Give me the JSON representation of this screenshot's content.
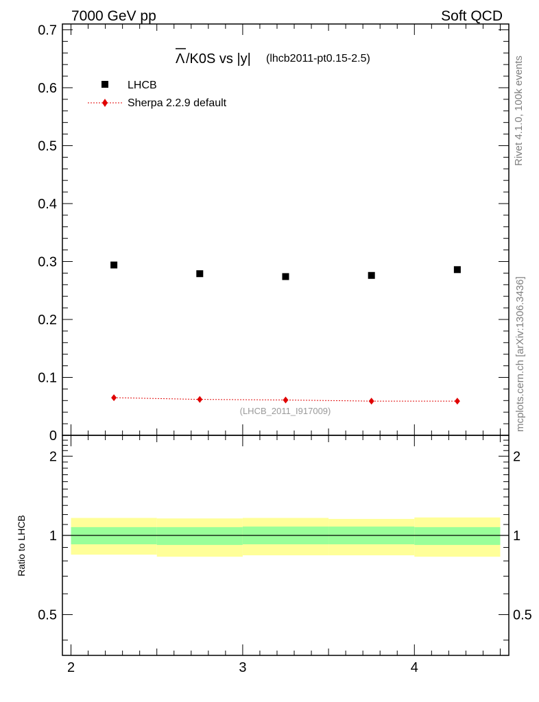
{
  "header": {
    "left_label": "7000 GeV pp",
    "right_label": "Soft QCD"
  },
  "side_labels": {
    "rivet": "Rivet 4.1.0,  100k events",
    "mcplots": "mcplots.cern.ch [arXiv:1306.3436]"
  },
  "chart_data": {
    "type": "scatter",
    "title": {
      "lambda_bar": "Λ",
      "main_rest": "/K0S vs |y|",
      "sub": "(lhcb2011-pt0.15-2.5)"
    },
    "watermark": "(LHCB_2011_I917009)",
    "legend": [
      {
        "key": "data",
        "label": "LHCB",
        "marker": "square",
        "color": "#000000"
      },
      {
        "key": "mc",
        "label": "Sherpa 2.2.9 default",
        "marker": "diamond",
        "color": "#e00000"
      }
    ],
    "bin_edges": [
      2.0,
      2.5,
      3.0,
      3.5,
      4.0,
      4.5
    ],
    "x": [
      2.25,
      2.75,
      3.25,
      3.75,
      4.25
    ],
    "xlim": [
      1.95,
      4.55
    ],
    "x_ticks": [
      2,
      3,
      4
    ],
    "x_tick_labels": [
      "2",
      "3",
      "4"
    ],
    "main": {
      "ylim": [
        0,
        0.71
      ],
      "y_ticks": [
        0,
        0.1,
        0.2,
        0.3,
        0.4,
        0.5,
        0.6,
        0.7
      ],
      "y_tick_labels": [
        "0",
        "0.1",
        "0.2",
        "0.3",
        "0.4",
        "0.5",
        "0.6",
        "0.7"
      ],
      "series": [
        {
          "name": "LHCB",
          "values": [
            0.294,
            0.279,
            0.274,
            0.276,
            0.286
          ]
        },
        {
          "name": "Sherpa 2.2.9 default",
          "values": [
            0.065,
            0.062,
            0.061,
            0.059,
            0.059
          ]
        }
      ]
    },
    "ratio": {
      "ylabel": "Ratio to LHCB",
      "ylim": [
        0.35,
        2.4
      ],
      "log_scale": true,
      "y_ticks": [
        0.5,
        1,
        2
      ],
      "y_tick_labels": [
        "0.5",
        "1",
        "2"
      ],
      "reference": 1,
      "stat_band": [
        [
          0.925,
          1.075
        ],
        [
          0.92,
          1.075
        ],
        [
          0.925,
          1.08
        ],
        [
          0.925,
          1.08
        ],
        [
          0.92,
          1.075
        ]
      ],
      "total_band": [
        [
          0.845,
          1.165
        ],
        [
          0.83,
          1.16
        ],
        [
          0.84,
          1.165
        ],
        [
          0.84,
          1.155
        ],
        [
          0.83,
          1.17
        ]
      ],
      "band_colors": {
        "total": "#ffff99",
        "stat": "#99ff99"
      }
    }
  }
}
